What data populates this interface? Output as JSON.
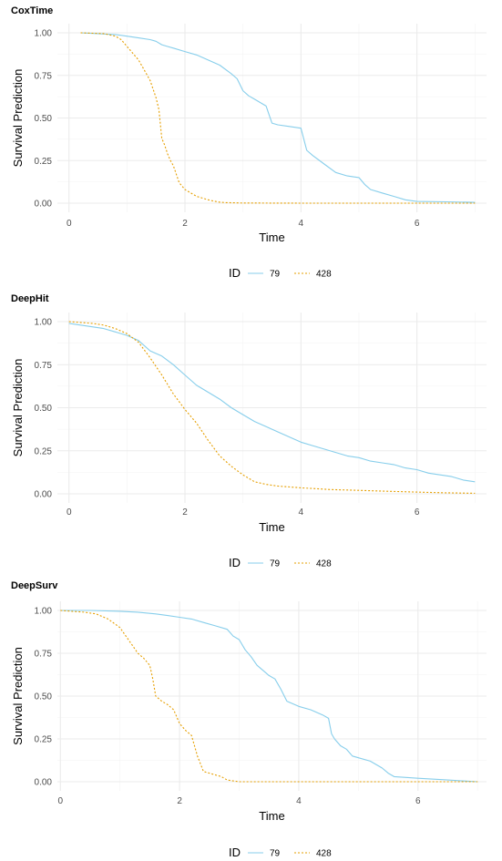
{
  "chart_data": [
    {
      "type": "line",
      "title": "CoxTime",
      "xlabel": "Time",
      "ylabel": "Survival Prediction",
      "xlim": [
        0,
        7
      ],
      "ylim": [
        0,
        1
      ],
      "xticks": [
        "0",
        "2",
        "4",
        "6"
      ],
      "yticks": [
        "0.00",
        "0.25",
        "0.50",
        "0.75",
        "1.00"
      ],
      "grid": true,
      "legend": {
        "title": "ID",
        "position": "bottom"
      },
      "series": [
        {
          "name": "79",
          "color": "#87ceeb",
          "style": "solid",
          "x": [
            0.2,
            0.8,
            1.0,
            1.2,
            1.4,
            1.5,
            1.6,
            1.7,
            1.8,
            2.0,
            2.2,
            2.4,
            2.6,
            2.8,
            2.9,
            3.0,
            3.1,
            3.2,
            3.4,
            3.45,
            3.5,
            3.6,
            3.8,
            4.0,
            4.1,
            4.2,
            4.4,
            4.6,
            4.8,
            5.0,
            5.1,
            5.2,
            5.4,
            5.6,
            5.8,
            6.0,
            6.5,
            7.0
          ],
          "y": [
            1.0,
            0.99,
            0.98,
            0.97,
            0.96,
            0.95,
            0.93,
            0.92,
            0.91,
            0.89,
            0.87,
            0.84,
            0.81,
            0.76,
            0.73,
            0.66,
            0.63,
            0.61,
            0.57,
            0.52,
            0.47,
            0.46,
            0.45,
            0.44,
            0.31,
            0.28,
            0.23,
            0.18,
            0.16,
            0.15,
            0.11,
            0.08,
            0.06,
            0.04,
            0.02,
            0.01,
            0.008,
            0.005
          ]
        },
        {
          "name": "428",
          "color": "#e69f00",
          "style": "dotted",
          "x": [
            0.2,
            0.6,
            0.8,
            0.9,
            1.0,
            1.1,
            1.2,
            1.3,
            1.4,
            1.45,
            1.5,
            1.55,
            1.6,
            1.65,
            1.7,
            1.75,
            1.8,
            1.9,
            2.0,
            2.1,
            2.2,
            2.3,
            2.4,
            2.5,
            2.6,
            2.7,
            3.0,
            4.0,
            5.0,
            7.0
          ],
          "y": [
            1.0,
            0.995,
            0.98,
            0.96,
            0.92,
            0.88,
            0.84,
            0.78,
            0.72,
            0.67,
            0.62,
            0.55,
            0.38,
            0.34,
            0.29,
            0.25,
            0.22,
            0.12,
            0.08,
            0.06,
            0.04,
            0.03,
            0.02,
            0.012,
            0.006,
            0.003,
            0.001,
            0.0,
            0.0,
            0.0
          ]
        }
      ]
    },
    {
      "type": "line",
      "title": "DeepHit",
      "xlabel": "Time",
      "ylabel": "Survival Prediction",
      "xlim": [
        0,
        7
      ],
      "ylim": [
        0,
        1
      ],
      "xticks": [
        "0",
        "2",
        "4",
        "6"
      ],
      "yticks": [
        "0.00",
        "0.25",
        "0.50",
        "0.75",
        "1.00"
      ],
      "grid": true,
      "legend": {
        "title": "ID",
        "position": "bottom"
      },
      "series": [
        {
          "name": "79",
          "color": "#87ceeb",
          "style": "solid",
          "x": [
            0.0,
            0.2,
            0.4,
            0.6,
            0.8,
            1.0,
            1.2,
            1.4,
            1.6,
            1.8,
            2.0,
            2.2,
            2.4,
            2.6,
            2.8,
            3.0,
            3.2,
            3.4,
            3.6,
            3.8,
            4.0,
            4.2,
            4.4,
            4.6,
            4.8,
            5.0,
            5.2,
            5.4,
            5.6,
            5.8,
            6.0,
            6.2,
            6.4,
            6.6,
            6.8,
            7.0
          ],
          "y": [
            0.99,
            0.98,
            0.97,
            0.96,
            0.94,
            0.92,
            0.89,
            0.83,
            0.8,
            0.75,
            0.69,
            0.63,
            0.59,
            0.55,
            0.5,
            0.46,
            0.42,
            0.39,
            0.36,
            0.33,
            0.3,
            0.28,
            0.26,
            0.24,
            0.22,
            0.21,
            0.19,
            0.18,
            0.17,
            0.15,
            0.14,
            0.12,
            0.11,
            0.1,
            0.08,
            0.07
          ]
        },
        {
          "name": "428",
          "color": "#e69f00",
          "style": "dotted",
          "x": [
            0.0,
            0.4,
            0.6,
            0.8,
            1.0,
            1.2,
            1.4,
            1.6,
            1.8,
            2.0,
            2.2,
            2.4,
            2.6,
            2.8,
            3.0,
            3.2,
            3.4,
            3.6,
            4.0,
            4.5,
            5.0,
            5.5,
            6.0,
            6.5,
            7.0
          ],
          "y": [
            1.0,
            0.99,
            0.98,
            0.96,
            0.93,
            0.88,
            0.79,
            0.69,
            0.58,
            0.49,
            0.41,
            0.31,
            0.22,
            0.16,
            0.11,
            0.07,
            0.055,
            0.045,
            0.035,
            0.025,
            0.02,
            0.015,
            0.01,
            0.006,
            0.003
          ]
        }
      ]
    },
    {
      "type": "line",
      "title": "DeepSurv",
      "xlabel": "Time",
      "ylabel": "Survival Prediction",
      "xlim": [
        0,
        7
      ],
      "ylim": [
        0,
        1
      ],
      "xticks": [
        "0",
        "2",
        "4",
        "6"
      ],
      "yticks": [
        "0.00",
        "0.25",
        "0.50",
        "0.75",
        "1.00"
      ],
      "grid": true,
      "legend": {
        "title": "ID",
        "position": "bottom"
      },
      "series": [
        {
          "name": "79",
          "color": "#87ceeb",
          "style": "solid",
          "x": [
            0.0,
            0.5,
            1.0,
            1.3,
            1.6,
            1.8,
            2.0,
            2.2,
            2.4,
            2.6,
            2.8,
            2.9,
            3.0,
            3.1,
            3.2,
            3.3,
            3.4,
            3.5,
            3.6,
            3.7,
            3.8,
            4.0,
            4.2,
            4.4,
            4.5,
            4.55,
            4.6,
            4.7,
            4.8,
            4.9,
            5.0,
            5.2,
            5.4,
            5.5,
            5.6,
            6.0,
            6.5,
            7.0
          ],
          "y": [
            1.0,
            1.0,
            0.995,
            0.99,
            0.98,
            0.97,
            0.96,
            0.95,
            0.93,
            0.91,
            0.89,
            0.85,
            0.83,
            0.77,
            0.73,
            0.68,
            0.65,
            0.62,
            0.6,
            0.54,
            0.47,
            0.44,
            0.42,
            0.39,
            0.37,
            0.28,
            0.25,
            0.21,
            0.19,
            0.15,
            0.14,
            0.12,
            0.08,
            0.05,
            0.03,
            0.02,
            0.01,
            0.0
          ]
        },
        {
          "name": "428",
          "color": "#e69f00",
          "style": "dotted",
          "x": [
            0.0,
            0.4,
            0.6,
            0.8,
            1.0,
            1.1,
            1.2,
            1.3,
            1.4,
            1.5,
            1.55,
            1.6,
            1.7,
            1.8,
            1.9,
            2.0,
            2.1,
            2.2,
            2.3,
            2.4,
            2.5,
            2.7,
            2.8,
            3.0,
            4.0,
            7.0
          ],
          "y": [
            1.0,
            0.99,
            0.98,
            0.95,
            0.9,
            0.85,
            0.8,
            0.75,
            0.72,
            0.68,
            0.6,
            0.5,
            0.47,
            0.45,
            0.42,
            0.34,
            0.3,
            0.27,
            0.15,
            0.06,
            0.05,
            0.03,
            0.01,
            0.0,
            0.0,
            0.0
          ]
        }
      ]
    }
  ]
}
